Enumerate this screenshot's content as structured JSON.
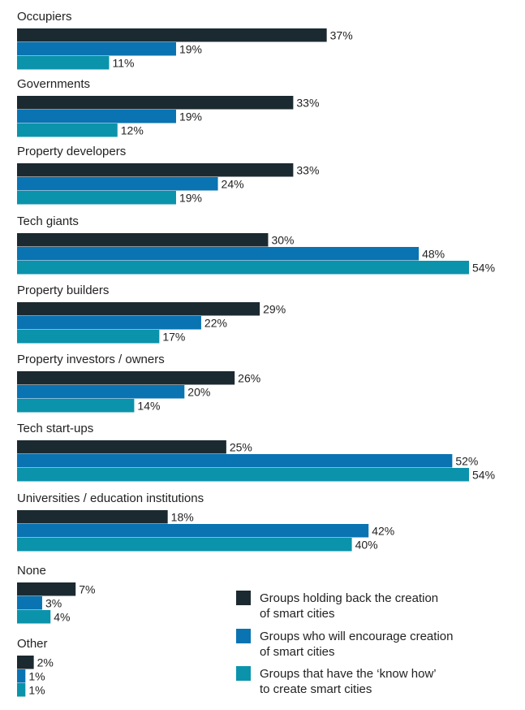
{
  "chart_data": {
    "type": "bar",
    "orientation": "horizontal",
    "value_suffix": "%",
    "categories": [
      "Occupiers",
      "Governments",
      "Property developers",
      "Tech giants",
      "Property builders",
      "Property investors / owners",
      "Tech start-ups",
      "Universities / education institutions",
      "None",
      "Other"
    ],
    "series": [
      {
        "name": "Groups holding back the creation of smart cities",
        "legend_lines": [
          "Groups holding back the creation",
          "of smart cities"
        ],
        "color": "#1b2a30",
        "values": [
          37,
          33,
          33,
          30,
          29,
          26,
          25,
          18,
          7,
          2
        ]
      },
      {
        "name": "Groups who will encourage creation of smart cities",
        "legend_lines": [
          "Groups who will encourage creation",
          "of smart cities"
        ],
        "color": "#0a73b2",
        "values": [
          19,
          19,
          24,
          48,
          22,
          20,
          52,
          42,
          3,
          1
        ]
      },
      {
        "name": "Groups that have the ‘know how’ to create smart cities",
        "legend_lines": [
          "Groups that have the ‘know how’",
          "to create smart cities"
        ],
        "color": "#0b93ab",
        "values": [
          11,
          12,
          19,
          54,
          17,
          14,
          54,
          40,
          4,
          1
        ]
      }
    ],
    "xlim": [
      0,
      54
    ],
    "legend_position": "bottom-right",
    "grid": false
  }
}
